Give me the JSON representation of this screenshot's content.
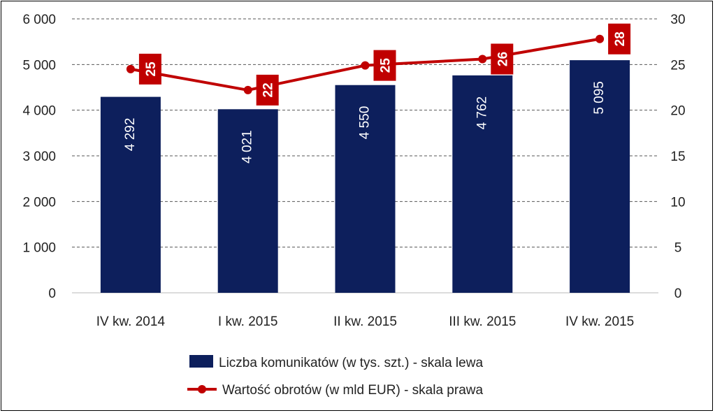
{
  "chart_data": {
    "type": "bar",
    "categories": [
      "IV kw. 2014",
      "I kw. 2015",
      "II kw. 2015",
      "III kw. 2015",
      "IV kw. 2015"
    ],
    "series": [
      {
        "name": "Liczba komunikatów (w tys. szt.) - skala lewa",
        "type": "bar",
        "axis": "left",
        "values": [
          4292,
          4021,
          4550,
          4762,
          5095
        ],
        "labels": [
          "4 292",
          "4 021",
          "4 550",
          "4 762",
          "5 095"
        ],
        "color": "#0d1f5c"
      },
      {
        "name": "Wartość obrotów (w mld EUR) - skala prawa",
        "type": "line",
        "axis": "right",
        "values": [
          24.5,
          22.2,
          24.9,
          25.6,
          27.8
        ],
        "labels": [
          "25",
          "22",
          "25",
          "26",
          "28"
        ],
        "color": "#c00000"
      }
    ],
    "y_left": {
      "ylim": [
        0,
        6000
      ],
      "ticks": [
        "0",
        "1 000",
        "2 000",
        "3 000",
        "4 000",
        "5 000",
        "6 000"
      ]
    },
    "y_right": {
      "ylim": [
        0,
        30
      ],
      "ticks": [
        "0",
        "5",
        "10",
        "15",
        "20",
        "25",
        "30"
      ]
    },
    "grid": true,
    "legend_position": "bottom"
  }
}
